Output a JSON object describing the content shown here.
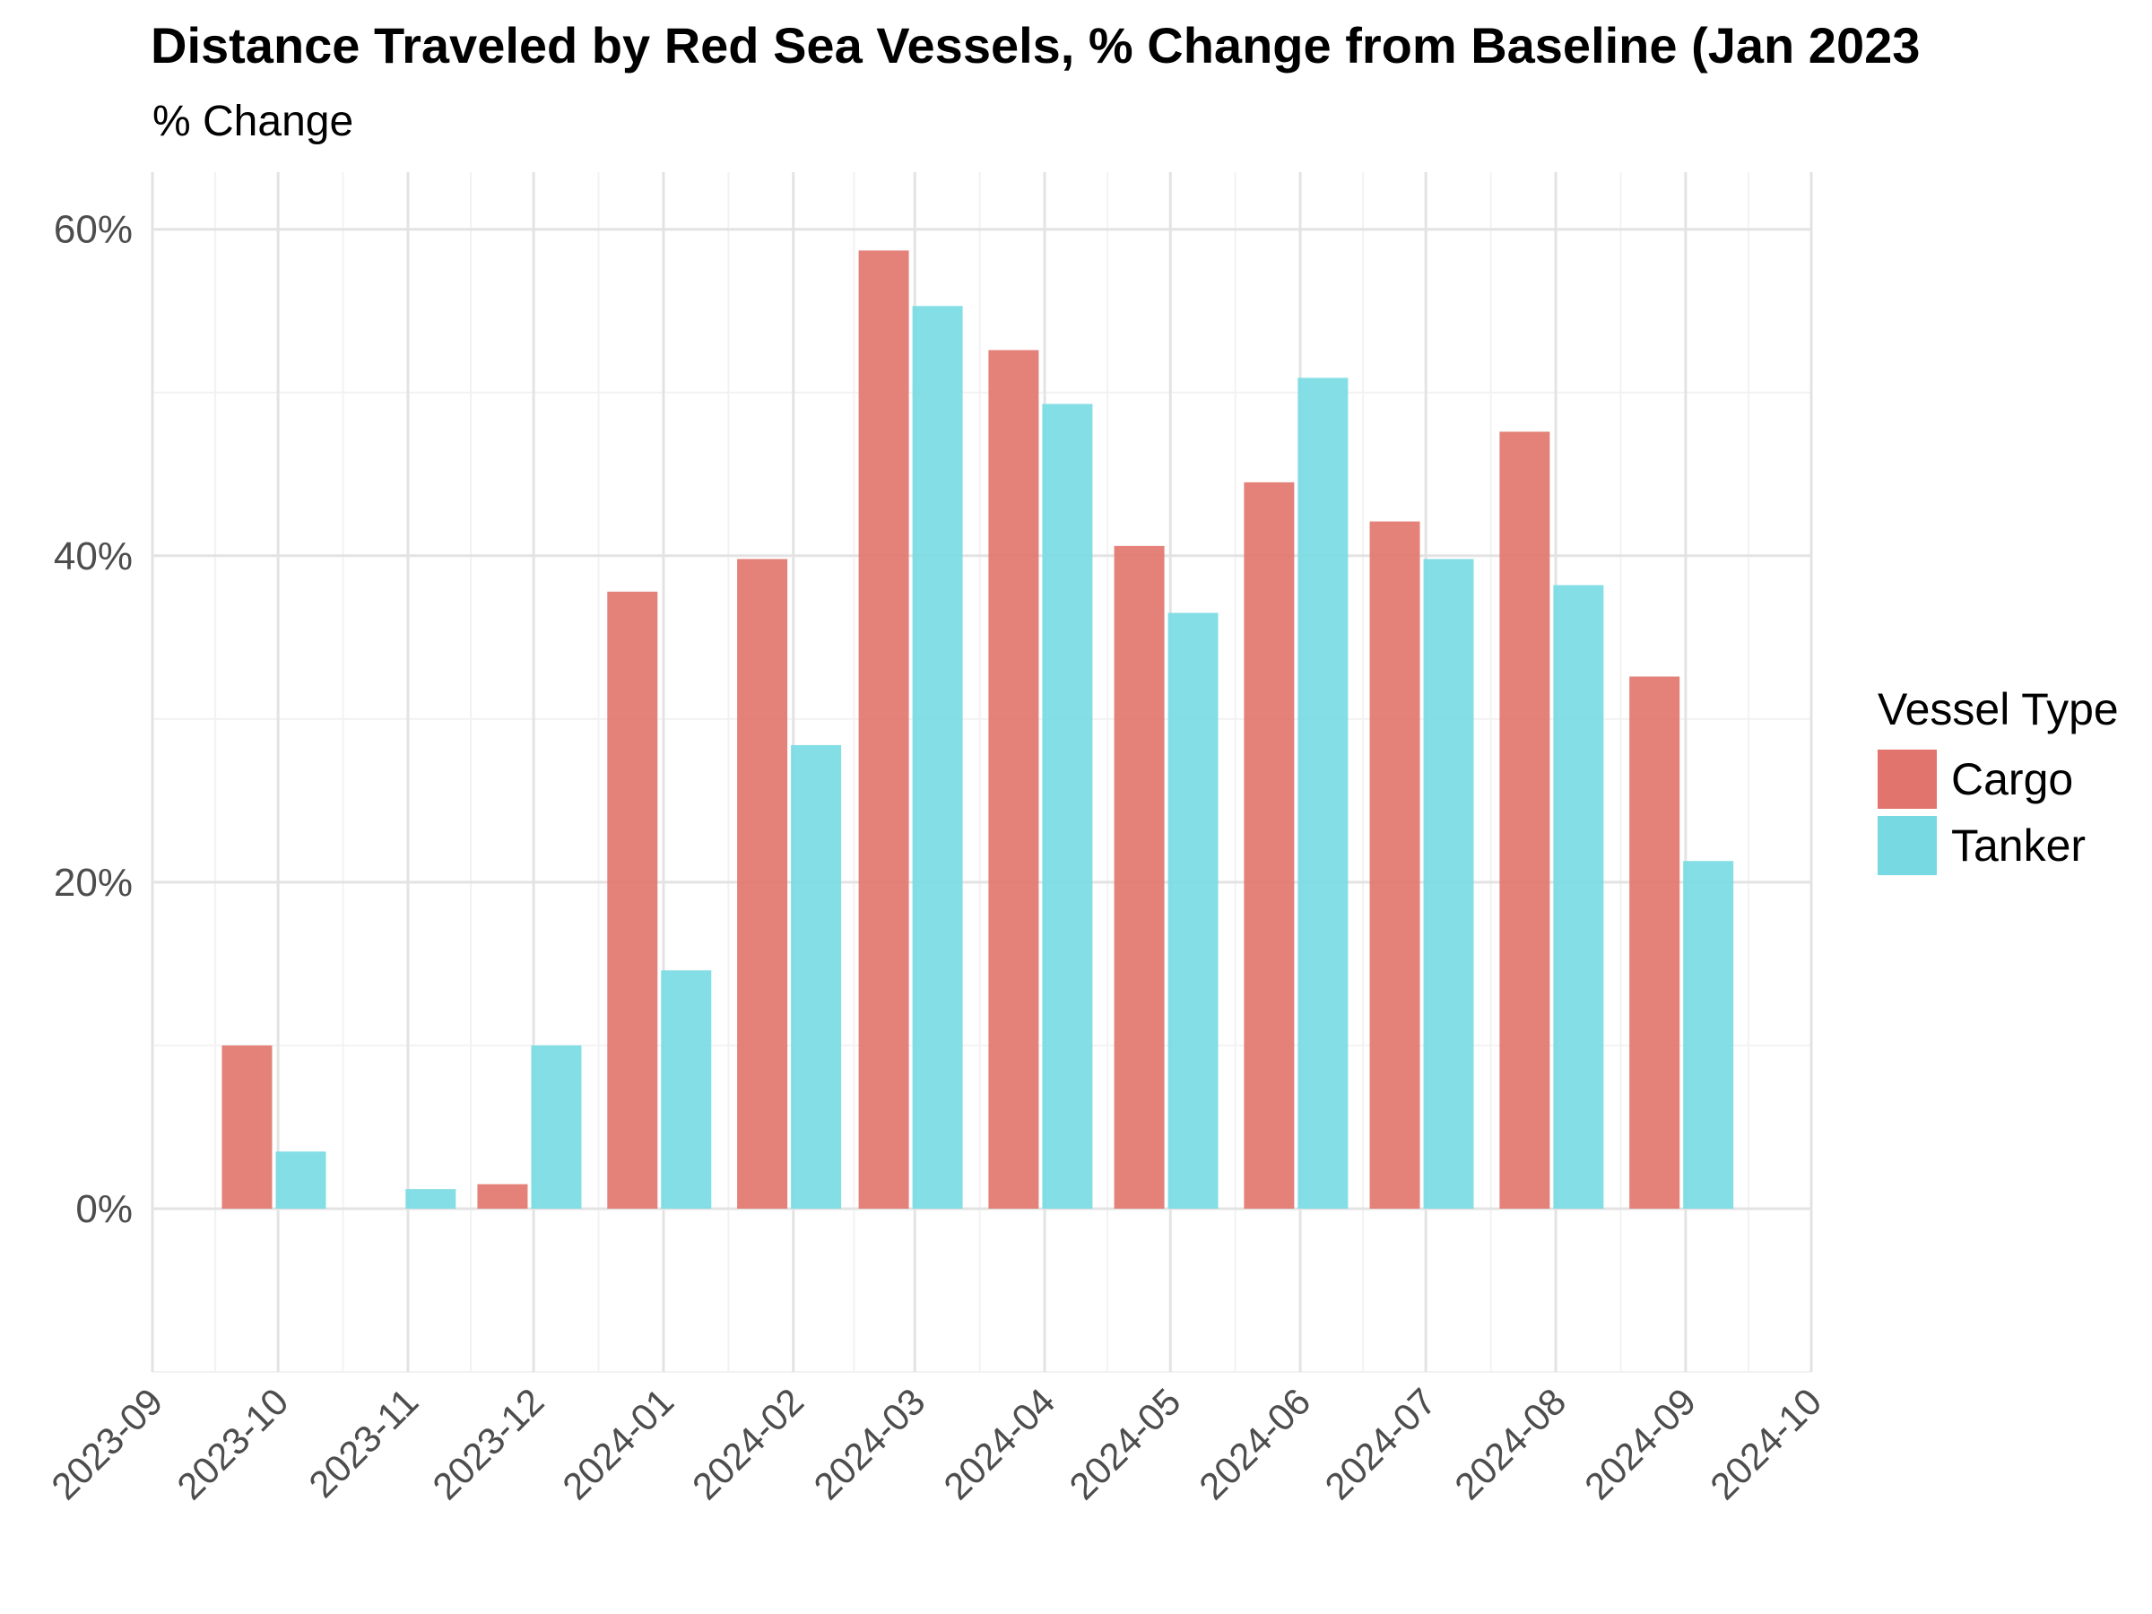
{
  "chart_data": {
    "type": "bar",
    "title": "Distance Traveled by Red Sea Vessels, % Change from Baseline (Jan 2023",
    "subtitle": "% Change",
    "xlabel": "",
    "ylabel": "% Change",
    "x_ticks": [
      "2023-09",
      "2023-10",
      "2023-11",
      "2023-12",
      "2024-01",
      "2024-02",
      "2024-03",
      "2024-04",
      "2024-05",
      "2024-06",
      "2024-07",
      "2024-08",
      "2024-09",
      "2024-10"
    ],
    "y_ticks": [
      0,
      20,
      40,
      60
    ],
    "y_tick_labels": [
      "0%",
      "20%",
      "40%",
      "60%"
    ],
    "ylim": [
      -10,
      63.5
    ],
    "xlim": [
      "2023-09-01",
      "2024-10-01"
    ],
    "grid": true,
    "legend": {
      "title": "Vessel Type",
      "position": "right"
    },
    "series": [
      {
        "name": "Cargo",
        "color": "#E1746C",
        "points": [
          {
            "x": "2023-09-30",
            "y": 10.0
          },
          {
            "x": "2023-11-30",
            "y": 1.5
          },
          {
            "x": "2023-12-31",
            "y": 37.8
          },
          {
            "x": "2024-01-31",
            "y": 39.8
          },
          {
            "x": "2024-02-29",
            "y": 58.7
          },
          {
            "x": "2024-03-31",
            "y": 52.6
          },
          {
            "x": "2024-04-30",
            "y": 40.6
          },
          {
            "x": "2024-05-31",
            "y": 44.5
          },
          {
            "x": "2024-06-30",
            "y": 42.1
          },
          {
            "x": "2024-07-31",
            "y": 47.6
          },
          {
            "x": "2024-08-31",
            "y": 32.6
          }
        ]
      },
      {
        "name": "Tanker",
        "color": "#77DAE2",
        "points": [
          {
            "x": "2023-09-30",
            "y": 3.5
          },
          {
            "x": "2023-10-31",
            "y": 1.2
          },
          {
            "x": "2023-11-30",
            "y": 10.0
          },
          {
            "x": "2023-12-31",
            "y": 14.6
          },
          {
            "x": "2024-01-31",
            "y": 28.4
          },
          {
            "x": "2024-02-29",
            "y": 55.3
          },
          {
            "x": "2024-03-31",
            "y": 49.3
          },
          {
            "x": "2024-04-30",
            "y": 36.5
          },
          {
            "x": "2024-05-31",
            "y": 50.9
          },
          {
            "x": "2024-06-30",
            "y": 39.8
          },
          {
            "x": "2024-07-31",
            "y": 38.2
          },
          {
            "x": "2024-08-31",
            "y": 21.3
          }
        ]
      }
    ]
  }
}
